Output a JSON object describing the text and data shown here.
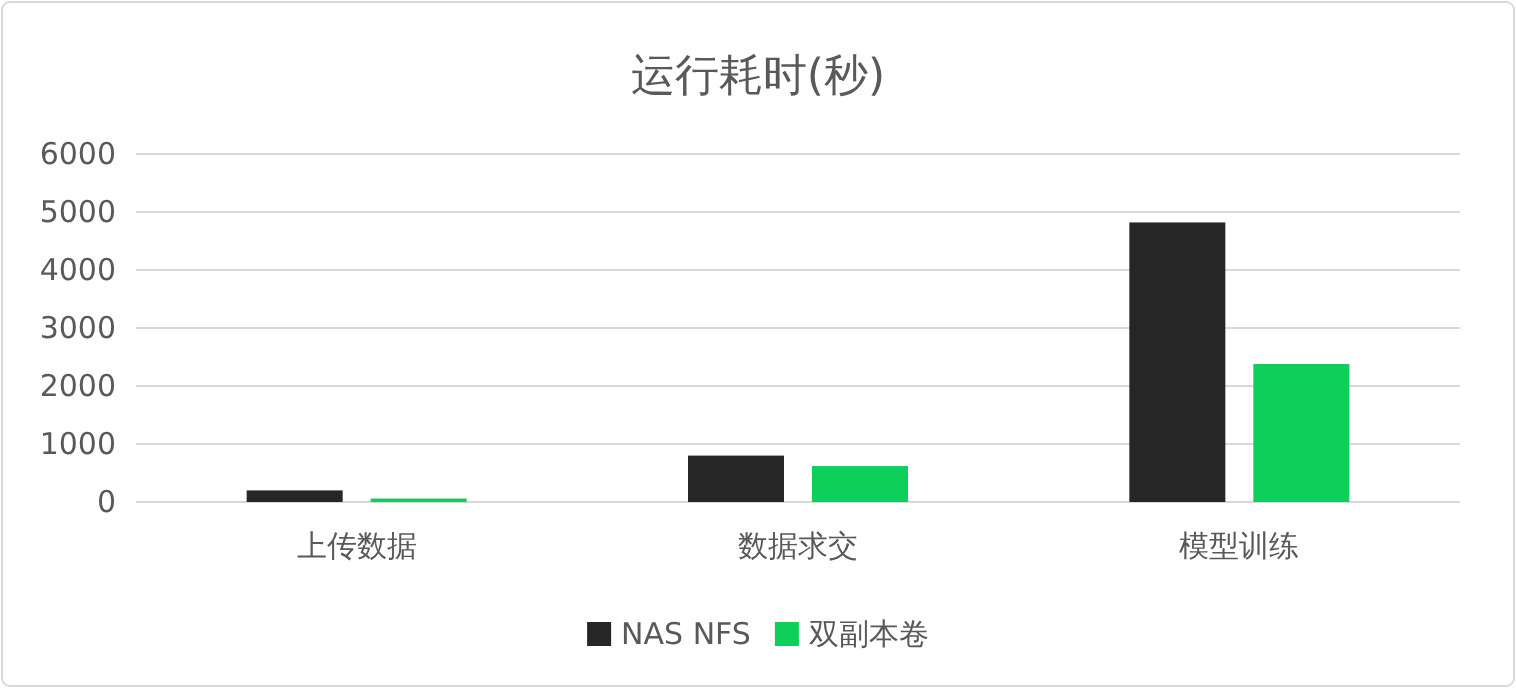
{
  "chart_data": {
    "type": "bar",
    "title": "运行耗时(秒)",
    "categories": [
      "上传数据",
      "数据求交",
      "模型训练"
    ],
    "series": [
      {
        "name": "NAS NFS",
        "color": "#262626",
        "values": [
          200,
          800,
          4820
        ]
      },
      {
        "name": "双副本卷",
        "color": "#0fcf5b",
        "values": [
          60,
          620,
          2380
        ]
      }
    ],
    "ylim": [
      0,
      6000
    ],
    "yticks": [
      0,
      1000,
      2000,
      3000,
      4000,
      5000,
      6000
    ],
    "grid": "y",
    "legend": "bottom"
  }
}
